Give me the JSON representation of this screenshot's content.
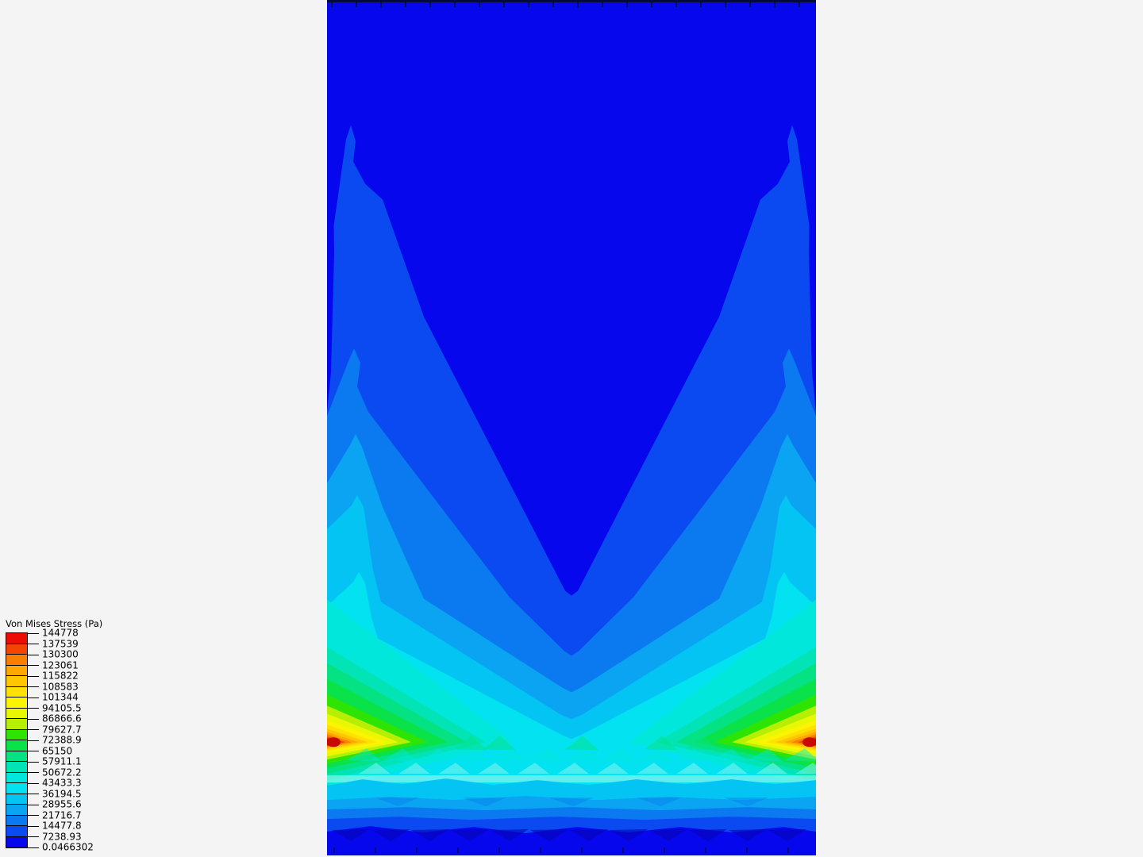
{
  "view": {
    "background": "#f4f4f4"
  },
  "legend": {
    "title": "Von Mises Stress (Pa)",
    "tick_values": [
      "144778",
      "137539",
      "130300",
      "123061",
      "115822",
      "108583",
      "101344",
      "94105.5",
      "86866.6",
      "79627.7",
      "72388.9",
      "65150",
      "57911.1",
      "50672.2",
      "43433.3",
      "36194.5",
      "28955.6",
      "21716.7",
      "14477.8",
      "7238.93",
      "0.0466302"
    ],
    "band_colors": [
      "#ec0e04",
      "#f54504",
      "#fb7e02",
      "#ffa702",
      "#ffc702",
      "#ffe204",
      "#fbf402",
      "#e8f804",
      "#b6ee04",
      "#2ee402",
      "#0ae24a",
      "#04e284",
      "#02e4b6",
      "#02e7dc",
      "#02e2f0",
      "#04c4f4",
      "#0aa4f2",
      "#0b7af0",
      "#0b4af0",
      "#0707ee"
    ]
  },
  "plot": {
    "edge_line_color": "#000a3c",
    "bottom_tick_color": "#00077a",
    "hotspot_core_color": "#c80b00",
    "noise_teal": "#02e7dc",
    "noise_green": "#04e284",
    "noise_light": "#90f8ee",
    "noise_azure": "#0b78f0",
    "noise_navy": "#0505b4",
    "streak_color": "#aefaf0"
  }
}
